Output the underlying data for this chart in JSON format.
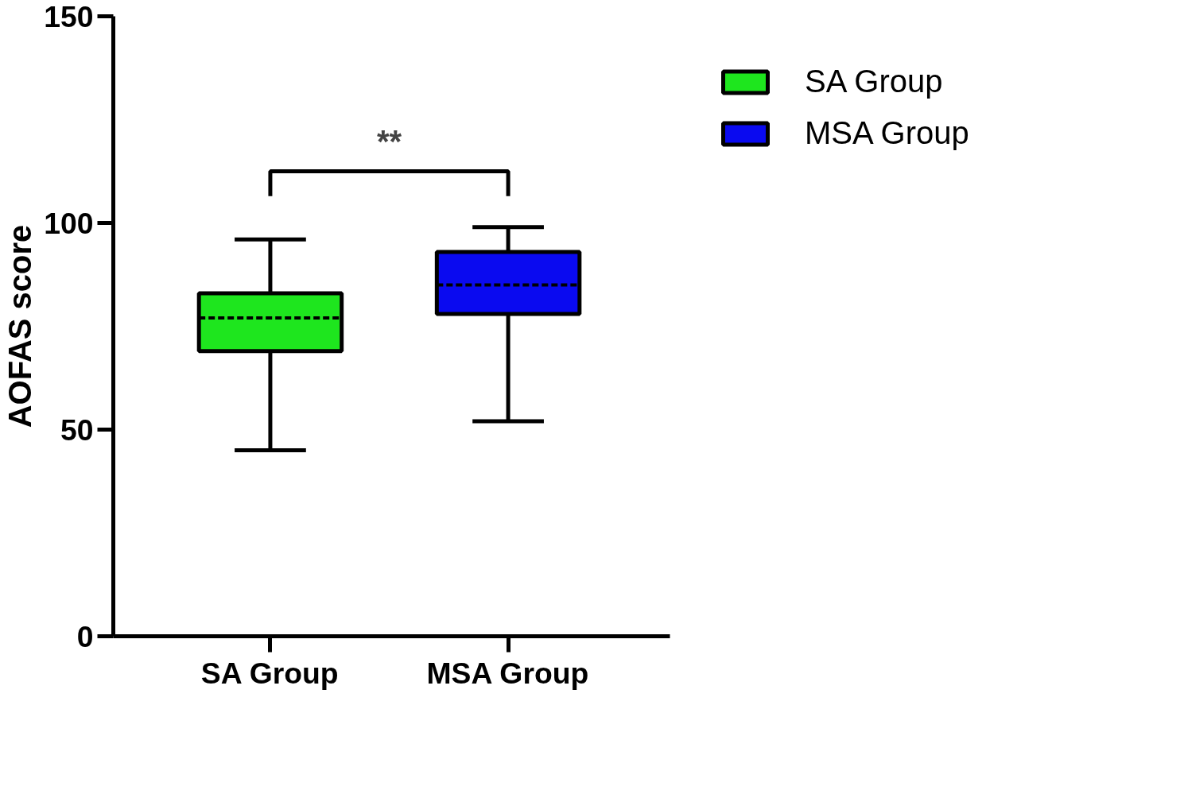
{
  "chart_data": {
    "type": "box",
    "ylabel": "AOFAS score",
    "categories": [
      "SA Group",
      "MSA Group"
    ],
    "series": [
      {
        "name": "SA Group",
        "color": "#1ee61e",
        "boxes": [
          {
            "low": 45,
            "q1": 69,
            "median": 77,
            "q3": 83,
            "high": 96
          },
          null
        ]
      },
      {
        "name": "MSA Group",
        "color": "#0a0af0",
        "boxes": [
          null,
          {
            "low": 52,
            "q1": 78,
            "median": 85,
            "q3": 93,
            "high": 99
          }
        ]
      }
    ],
    "ylim": [
      0,
      150
    ],
    "yticks": [
      0,
      50,
      100,
      150
    ],
    "grid": false,
    "legend": "top right",
    "annotations": [
      "**"
    ]
  }
}
